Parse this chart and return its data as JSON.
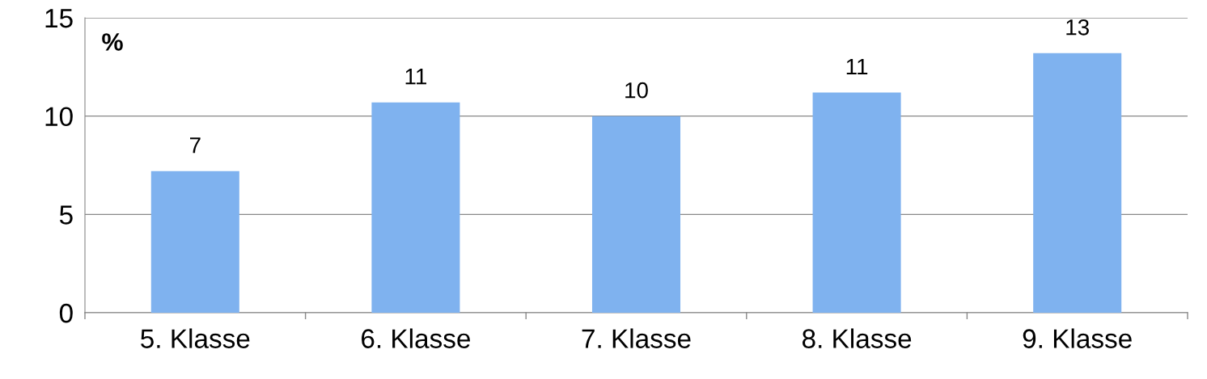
{
  "chart_data": {
    "type": "bar",
    "ylabel": "%",
    "categories": [
      "5. Klasse",
      "6. Klasse",
      "7. Klasse",
      "8. Klasse",
      "9. Klasse"
    ],
    "values": [
      7.2,
      10.7,
      10.0,
      11.2,
      13.2
    ],
    "value_labels": [
      "7",
      "11",
      "10",
      "11",
      "13"
    ],
    "color": "#7fb2ef",
    "ylim": [
      0,
      15
    ],
    "yticks": [
      0,
      5,
      10,
      15
    ],
    "grid": "y",
    "legend": false
  }
}
